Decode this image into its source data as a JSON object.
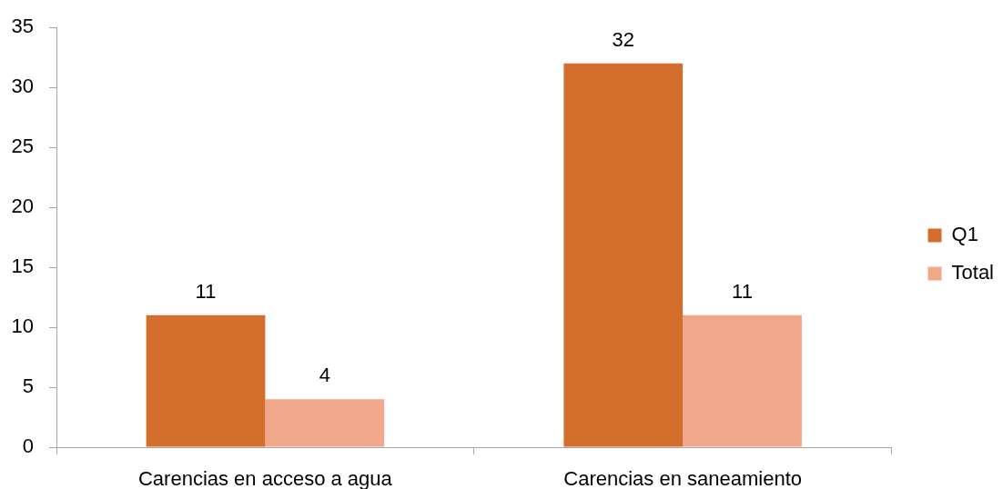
{
  "chart_data": {
    "type": "bar",
    "categories": [
      "Carencias en acceso a agua",
      "Carencias en saneamiento"
    ],
    "series": [
      {
        "name": "Q1",
        "color": "#d36e2c",
        "values": [
          11,
          32
        ]
      },
      {
        "name": "Total",
        "color": "#f0a78a",
        "values": [
          4,
          11
        ]
      }
    ],
    "ylim": [
      0,
      35
    ],
    "yticks": [
      0,
      5,
      10,
      15,
      20,
      25,
      30,
      35
    ],
    "legend": "right",
    "data_labels": true
  }
}
